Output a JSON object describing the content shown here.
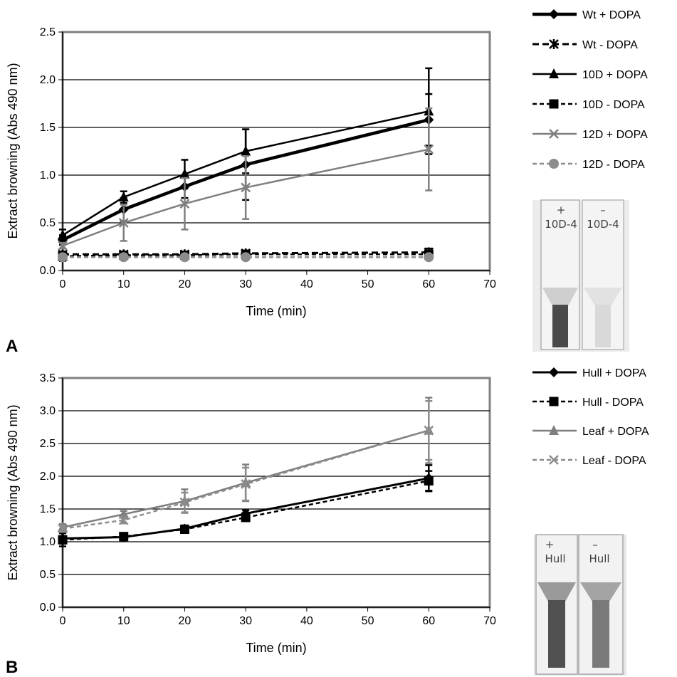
{
  "panels": {
    "a_label": "A",
    "b_label": "B"
  },
  "chart_data": [
    {
      "type": "line",
      "panel": "A",
      "xlabel": "Time (min)",
      "ylabel": "Extract browning (Abs 490 nm)",
      "xlim": [
        0,
        70
      ],
      "ylim": [
        0,
        2.5
      ],
      "x_ticks": [
        "0",
        "10",
        "20",
        "30",
        "40",
        "50",
        "60",
        "70"
      ],
      "y_ticks": [
        "0.0",
        "0.5",
        "1.0",
        "1.5",
        "2.0",
        "2.5"
      ],
      "grid": "horizontal",
      "legend_position": "right",
      "x": [
        0,
        10,
        20,
        30,
        60
      ],
      "series": [
        {
          "name": "Wt + DOPA",
          "values": [
            0.32,
            0.64,
            0.88,
            1.11,
            1.58
          ],
          "errors": [
            0.05,
            0.12,
            0.12,
            0.37,
            0.27
          ],
          "color": "#000000",
          "dash": "solid",
          "marker": "diamond",
          "width": 4.5
        },
        {
          "name": "Wt - DOPA",
          "values": [
            0.17,
            0.17,
            0.17,
            0.18,
            0.19
          ],
          "errors": [
            0.03,
            0.03,
            0.03,
            0.03,
            0.04
          ],
          "color": "#000000",
          "dash": "dash",
          "marker": "asterisk",
          "width": 3
        },
        {
          "name": "10D + DOPA",
          "values": [
            0.37,
            0.77,
            1.01,
            1.25,
            1.67
          ],
          "errors": [
            0.06,
            0.06,
            0.15,
            0.23,
            0.45
          ],
          "color": "#000000",
          "dash": "solid",
          "marker": "triangle",
          "width": 2.5
        },
        {
          "name": "10D - DOPA",
          "values": [
            0.15,
            0.16,
            0.16,
            0.17,
            0.17
          ],
          "errors": [
            0.05,
            0.03,
            0.03,
            0.03,
            0.03
          ],
          "color": "#000000",
          "dash": "shortdash",
          "marker": "square",
          "width": 2.5
        },
        {
          "name": "12D + DOPA",
          "values": [
            0.26,
            0.5,
            0.7,
            0.87,
            1.27
          ],
          "errors": [
            0.03,
            0.19,
            0.27,
            0.33,
            0.43
          ],
          "color": "#7f7f7f",
          "dash": "solid",
          "marker": "x",
          "width": 2.5
        },
        {
          "name": "12D - DOPA",
          "values": [
            0.14,
            0.14,
            0.14,
            0.14,
            0.14
          ],
          "errors": [
            0.02,
            0.02,
            0.02,
            0.02,
            0.02
          ],
          "color": "#8c8c8c",
          "dash": "shortdash",
          "marker": "circle",
          "width": 2.5
        }
      ]
    },
    {
      "type": "line",
      "panel": "B",
      "xlabel": "Time (min)",
      "ylabel": "Extract browning (Abs 490 nm)",
      "xlim": [
        0,
        70
      ],
      "ylim": [
        0,
        3.5
      ],
      "x_ticks": [
        "0",
        "10",
        "20",
        "30",
        "40",
        "50",
        "60",
        "70"
      ],
      "y_ticks": [
        "0.0",
        "0.5",
        "1.0",
        "1.5",
        "2.0",
        "2.5",
        "3.0",
        "3.5"
      ],
      "grid": "horizontal",
      "legend_position": "right",
      "x": [
        0,
        10,
        20,
        30,
        60
      ],
      "series": [
        {
          "name": "Hull + DOPA",
          "values": [
            1.05,
            1.07,
            1.2,
            1.43,
            1.97
          ],
          "errors": [
            0.08,
            0.05,
            0.05,
            0.05,
            0.2
          ],
          "color": "#000000",
          "dash": "solid",
          "marker": "diamond",
          "width": 3
        },
        {
          "name": "Hull - DOPA",
          "values": [
            1.03,
            1.08,
            1.19,
            1.37,
            1.93
          ],
          "errors": [
            0.1,
            0.05,
            0.05,
            0.05,
            0.15
          ],
          "color": "#000000",
          "dash": "shortdash",
          "marker": "square",
          "width": 2.5
        },
        {
          "name": "Leaf + DOPA",
          "values": [
            1.22,
            1.42,
            1.62,
            1.9,
            2.7
          ],
          "errors": [
            0.05,
            0.05,
            0.18,
            0.28,
            0.5
          ],
          "color": "#7f7f7f",
          "dash": "solid",
          "marker": "triangle",
          "width": 2.5
        },
        {
          "name": "Leaf - DOPA",
          "values": [
            1.2,
            1.33,
            1.6,
            1.88,
            2.7
          ],
          "errors": [
            0.05,
            0.05,
            0.15,
            0.25,
            0.45
          ],
          "color": "#8c8c8c",
          "dash": "shortdash",
          "marker": "x",
          "width": 2.5
        }
      ]
    }
  ],
  "photos": {
    "a": {
      "left_label": "+",
      "left_code": "10D-4",
      "right_label": "–",
      "right_code": "10D-4",
      "liquid_colors": [
        "#4a4a4a",
        "#d9d9d9"
      ]
    },
    "b": {
      "left_label": "+",
      "left_code": "Hull",
      "right_label": "–",
      "right_code": "Hull",
      "liquid_colors": [
        "#505050",
        "#7a7a7a"
      ]
    }
  }
}
